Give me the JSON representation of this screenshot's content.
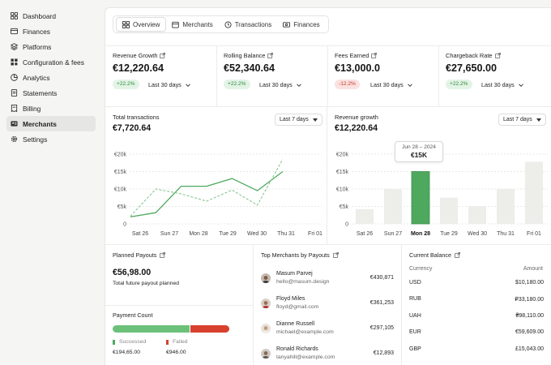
{
  "sidebar": {
    "items": [
      {
        "label": "Dashboard",
        "icon": "grid-icon",
        "active": false
      },
      {
        "label": "Finances",
        "icon": "wallet-icon",
        "active": false
      },
      {
        "label": "Platforms",
        "icon": "layers-icon",
        "active": false
      },
      {
        "label": "Configuration & fees",
        "icon": "apps-icon",
        "active": false
      },
      {
        "label": "Analytics",
        "icon": "chart-pie-icon",
        "active": false
      },
      {
        "label": "Statements",
        "icon": "document-icon",
        "active": false
      },
      {
        "label": "Billing",
        "icon": "receipt-icon",
        "active": false
      },
      {
        "label": "Merchants",
        "icon": "users-icon",
        "active": true
      },
      {
        "label": "Settings",
        "icon": "gear-icon",
        "active": false
      }
    ]
  },
  "tabs": [
    {
      "label": "Overview",
      "icon": "overview-icon",
      "active": true
    },
    {
      "label": "Merchants",
      "icon": "store-icon",
      "active": false
    },
    {
      "label": "Transactions",
      "icon": "history-icon",
      "active": false
    },
    {
      "label": "Finances",
      "icon": "money-icon",
      "active": false
    }
  ],
  "kpis": [
    {
      "label": "Revenue Growth",
      "value": "€12,220.64",
      "change": "+22.2%",
      "trend": "up",
      "period": "Last 30 days"
    },
    {
      "label": "Rolling Balance",
      "value": "€52,340.64",
      "change": "+22.2%",
      "trend": "up",
      "period": "Last 30 days"
    },
    {
      "label": "Fees Earned",
      "value": "€13,000.0",
      "change": "-12.2%",
      "trend": "down",
      "period": "Last 30 days"
    },
    {
      "label": "Chargeback Rate",
      "value": "€27,650.00",
      "change": "+22.2%",
      "trend": "up",
      "period": "Last 30 days"
    }
  ],
  "total_transactions": {
    "title": "Total transactions",
    "value": "€7,720.64",
    "period": "Last 7 days"
  },
  "revenue_growth": {
    "title": "Revenue growth",
    "value": "€12,220.64",
    "period": "Last 7 days",
    "tooltip_date": "Jun 28 – 2024",
    "tooltip_value": "€15K"
  },
  "chart_data": [
    {
      "type": "line",
      "categories": [
        "Sat 26",
        "Sun 27",
        "Mon 28",
        "Tue 29",
        "Wed 30",
        "Thu 31",
        "Fri 01"
      ],
      "y_ticks": [
        "€20k",
        "€15k",
        "€10k",
        "€5k",
        "0"
      ],
      "ylim": [
        0,
        20000
      ],
      "grid": true,
      "series": [
        {
          "style": "solid",
          "color": "#4ea85e",
          "values": [
            [
              0,
              2000
            ],
            [
              0.87,
              3200
            ],
            [
              1.74,
              10800
            ],
            [
              2.61,
              10800
            ],
            [
              3.48,
              13000
            ],
            [
              4.35,
              9500
            ],
            [
              5.22,
              15000
            ]
          ]
        },
        {
          "style": "dashed",
          "color": "#7cc388",
          "values": [
            [
              0,
              2200
            ],
            [
              0.87,
              10000
            ],
            [
              1.74,
              8600
            ],
            [
              2.61,
              6500
            ],
            [
              3.48,
              9700
            ],
            [
              4.35,
              5400
            ],
            [
              5.22,
              18500
            ]
          ]
        }
      ]
    },
    {
      "type": "bar",
      "categories": [
        "Sat 26",
        "Sun 27",
        "Mon 28",
        "Tue 29",
        "Wed 30",
        "Thu 31",
        "Fri 01"
      ],
      "values": [
        4200,
        10000,
        15000,
        7500,
        5100,
        10000,
        17800
      ],
      "highlight_index": 2,
      "highlight_color": "#4ea85e",
      "bar_color": "#ededea",
      "y_ticks": [
        "€20k",
        "€15k",
        "€10k",
        "€5k",
        "0"
      ],
      "ylim": [
        0,
        20000
      ],
      "grid": true
    }
  ],
  "planned_payouts": {
    "title": "Planned Payouts",
    "value": "€56,98.00",
    "subtitle": "Total future payout planned"
  },
  "payment_count": {
    "title": "Payment Count",
    "success_label": "Successed",
    "success_value": "€194,65.00",
    "failed_label": "Failed",
    "failed_value": "€946.00",
    "success_fraction": 0.66,
    "success_color": "#6cc17a",
    "failed_color": "#d8412e"
  },
  "top_merchants": {
    "title": "Top Merchants by Payouts",
    "items": [
      {
        "name": "Masum Parvej",
        "email": "hello@masum.design",
        "amount": "€430,871"
      },
      {
        "name": "Floyd Miles",
        "email": "floyd@gmail.com",
        "amount": "€361,253"
      },
      {
        "name": "Dianne Russell",
        "email": "michael@example.com",
        "amount": "€297,105"
      },
      {
        "name": "Ronald Richards",
        "email": "tanyahill@example.com",
        "amount": "€12,893"
      }
    ]
  },
  "current_balance": {
    "title": "Current Balance",
    "col_currency": "Currency",
    "col_amount": "Amount",
    "rows": [
      {
        "currency": "USD",
        "amount": "$10,180.00"
      },
      {
        "currency": "RUB",
        "amount": "₽33,180.00"
      },
      {
        "currency": "UAH",
        "amount": "₴98,110.00"
      },
      {
        "currency": "EUR",
        "amount": "€59,609.00"
      },
      {
        "currency": "GBP",
        "amount": "£15,043.00"
      }
    ]
  }
}
